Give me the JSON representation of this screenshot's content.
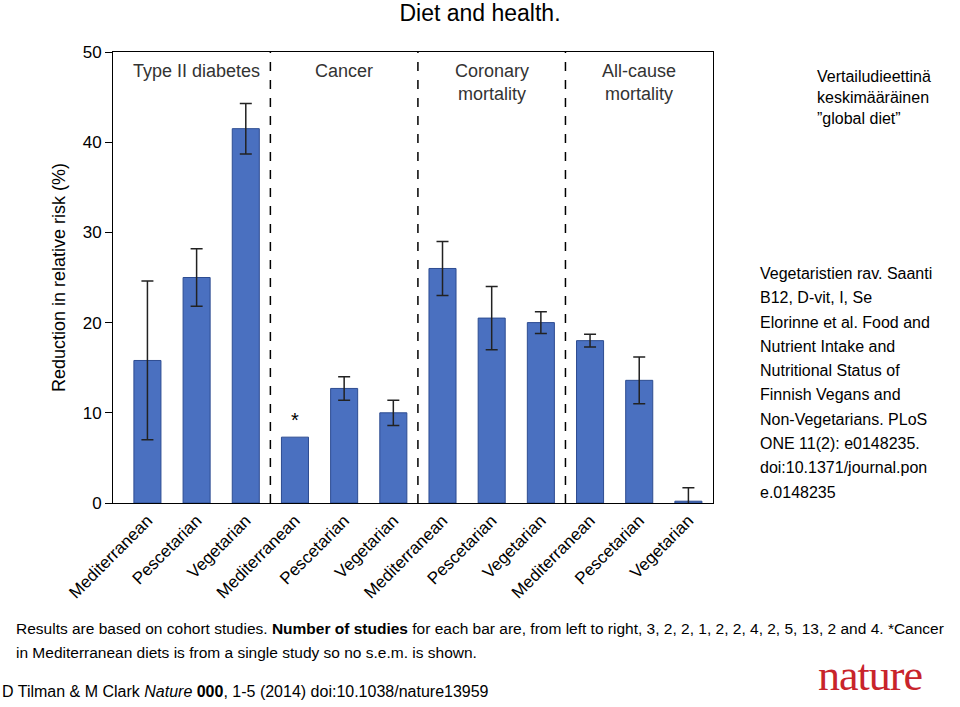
{
  "title": "Diet and health.",
  "chart_data": {
    "type": "bar",
    "categories": [
      "Mediterranean",
      "Pescetarian",
      "Vegetarian",
      "Mediterranean",
      "Pescetarian",
      "Vegetarian",
      "Mediterranean",
      "Pescetarian",
      "Vegetarian",
      "Mediterranean",
      "Pescetarian",
      "Vegetarian"
    ],
    "values": [
      15.8,
      25.0,
      41.5,
      7.3,
      12.7,
      10.0,
      26.0,
      20.5,
      20.0,
      18.0,
      13.6,
      0.2
    ],
    "error": [
      8.8,
      3.2,
      2.8,
      null,
      1.3,
      1.4,
      3.0,
      3.5,
      1.2,
      0.7,
      2.6,
      1.5
    ],
    "color": "#4a70c0",
    "ylabel": "Reduction in relative risk (%)",
    "ylim": [
      0,
      50
    ],
    "yticks": [
      0,
      10,
      20,
      30,
      40,
      50
    ],
    "grid": false,
    "group_labels": [
      "Type II diabetes",
      "Cancer",
      "Coronary\nmortality",
      "All-cause\nmortality"
    ],
    "annotations": [
      {
        "x": 3,
        "text": "*"
      }
    ]
  },
  "reference_diet": [
    "Vertailudieettinä",
    "keskimääräinen",
    "”global diet”"
  ],
  "side_note": [
    "Vegetaristien rav. Saanti",
    "B12, D-vit, I, Se",
    "Elorinne et al. Food and",
    "Nutrient Intake and",
    "Nutritional Status of",
    "Finnish Vegans and",
    "Non-Vegetarians. PLoS",
    "ONE 11(2): e0148235.",
    "doi:10.1371/journal.pon",
    "e.0148235"
  ],
  "caption": {
    "lead": "Results are based on cohort studies.",
    "emphasis": "Number of studies",
    "rest": "for each bar are, from left to right, 3, 2, 2, 1, 2, 2, 4, 2, 5, 13, 2 and 4.",
    "note": "*Cancer in Mediterranean diets is from a single study so no s.e.m. is shown."
  },
  "source": {
    "authors": "D Tilman & M Clark",
    "journal": "Nature",
    "volume": "000",
    "rest": ", 1-5 (2014) doi:10.1038/nature13959"
  },
  "logo": "nature"
}
